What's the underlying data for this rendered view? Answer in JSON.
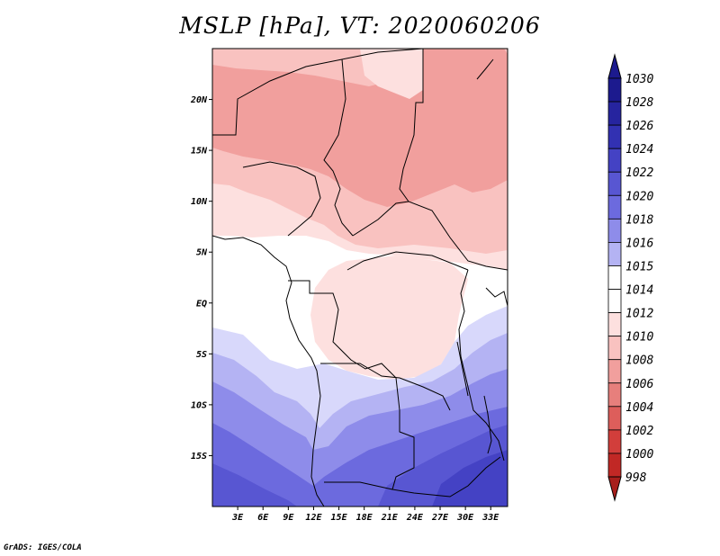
{
  "title": "MSLP [hPa], VT: 2020060206",
  "credit": "GrADS: IGES/COLA",
  "map": {
    "lon_range": [
      0,
      35
    ],
    "lat_range": [
      -20,
      25
    ],
    "lat_ticks": [
      {
        "lat": 20,
        "label": "20N"
      },
      {
        "lat": 15,
        "label": "15N"
      },
      {
        "lat": 10,
        "label": "10N"
      },
      {
        "lat": 5,
        "label": "5N"
      },
      {
        "lat": 0,
        "label": "EQ"
      },
      {
        "lat": -5,
        "label": "5S"
      },
      {
        "lat": -10,
        "label": "10S"
      },
      {
        "lat": -15,
        "label": "15S"
      }
    ],
    "lon_ticks": [
      {
        "lon": 3,
        "label": "3E"
      },
      {
        "lon": 6,
        "label": "6E"
      },
      {
        "lon": 9,
        "label": "9E"
      },
      {
        "lon": 12,
        "label": "12E"
      },
      {
        "lon": 15,
        "label": "15E"
      },
      {
        "lon": 18,
        "label": "18E"
      },
      {
        "lon": 21,
        "label": "21E"
      },
      {
        "lon": 24,
        "label": "24E"
      },
      {
        "lon": 27,
        "label": "27E"
      },
      {
        "lon": 30,
        "label": "30E"
      },
      {
        "lon": 33,
        "label": "33E"
      }
    ]
  },
  "colorbar": {
    "levels": [
      {
        "label": "1030",
        "color": "#1c1a8e"
      },
      {
        "label": "1028",
        "color": "#26249f"
      },
      {
        "label": "1026",
        "color": "#3231b2"
      },
      {
        "label": "1024",
        "color": "#4442c4"
      },
      {
        "label": "1022",
        "color": "#5856d2"
      },
      {
        "label": "1020",
        "color": "#6c6ade"
      },
      {
        "label": "1018",
        "color": "#8e8cea"
      },
      {
        "label": "1016",
        "color": "#b4b3f3"
      },
      {
        "label": "1015",
        "color": "#d8d8fb"
      },
      {
        "label": "1014",
        "color": "#ffffff"
      },
      {
        "label": "1012",
        "color": "#fde0df"
      },
      {
        "label": "1010",
        "color": "#f9c2c0"
      },
      {
        "label": "1008",
        "color": "#f19f9d"
      },
      {
        "label": "1006",
        "color": "#e77f7c"
      },
      {
        "label": "1004",
        "color": "#dd5e5b"
      },
      {
        "label": "1002",
        "color": "#d23e3b"
      },
      {
        "label": "1000",
        "color": "#c12825"
      },
      {
        "label": "998",
        "color": "#a81f1c"
      }
    ],
    "top_cap_color": "#1c1a8e",
    "bottom_cap_color": "#a81f1c"
  }
}
